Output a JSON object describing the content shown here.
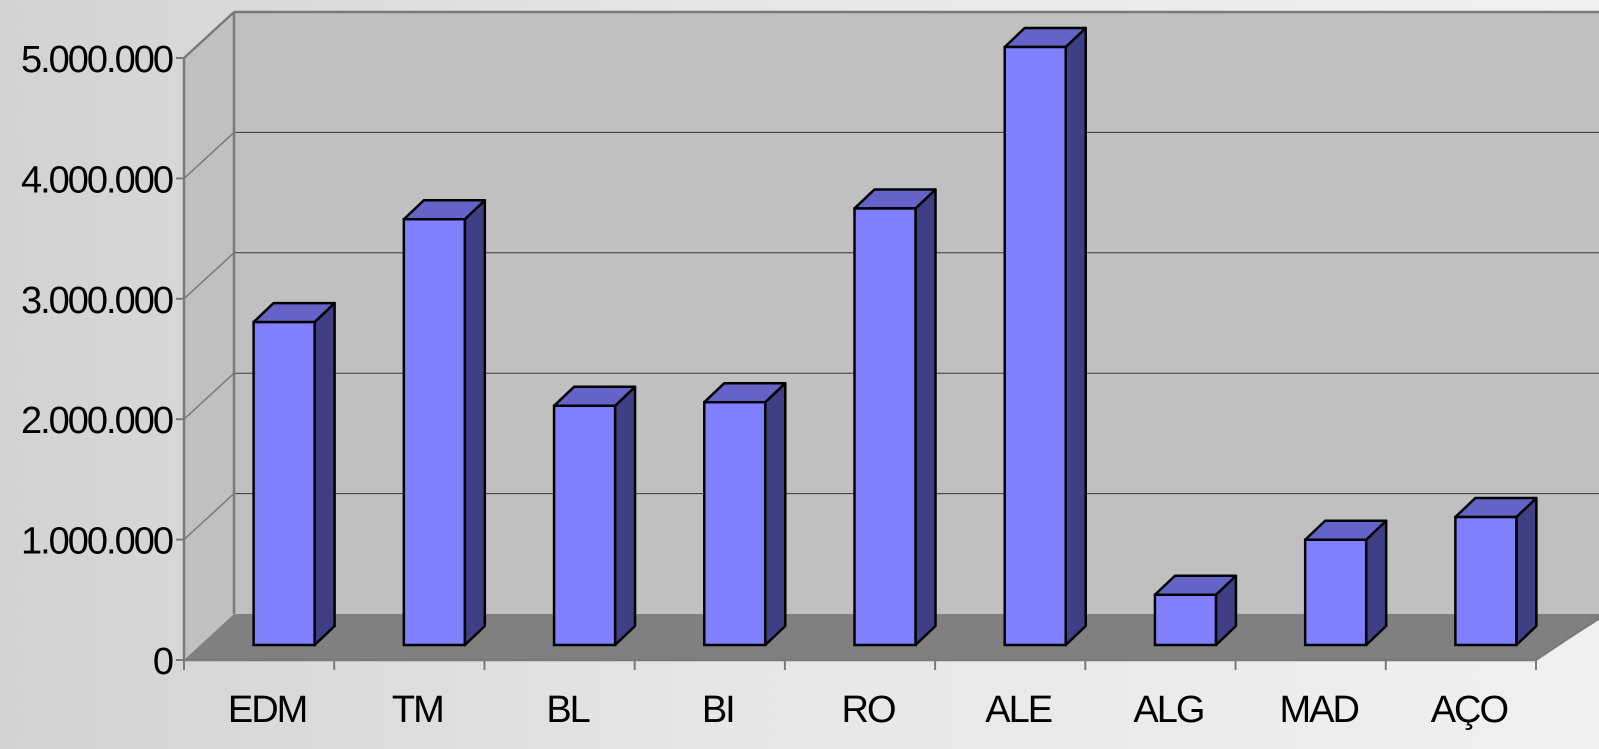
{
  "chart_data": {
    "type": "bar",
    "style": "3d-column",
    "categories": [
      "EDM",
      "TM",
      "BL",
      "BI",
      "RO",
      "ALE",
      "ALG",
      "MAD",
      "AÇO"
    ],
    "values": [
      2700000,
      3560000,
      2000000,
      2030000,
      3650000,
      5000000,
      420000,
      880000,
      1070000
    ],
    "yticks": [
      "0",
      "1.000.000",
      "2.000.000",
      "3.000.000",
      "4.000.000",
      "5.000.000"
    ],
    "ylim": [
      0,
      5000000
    ],
    "grid": true,
    "legend": "none",
    "colors": {
      "bar_front": "#8080ff",
      "bar_side": "#3f3f86",
      "bar_top": "#6464c8",
      "wall": "#c0c0c0",
      "floor": "#808080",
      "gridline": "#3a3a3a",
      "axis": "#7a7a7a"
    }
  }
}
